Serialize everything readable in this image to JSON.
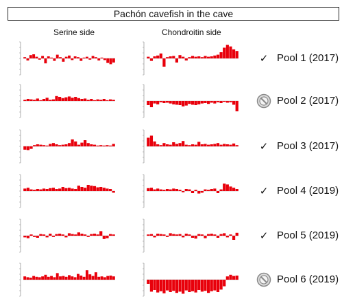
{
  "title": "Pachón cavefish  in the cave",
  "columns": {
    "serine": "Serine side",
    "chondroitin": "Chondroitin side"
  },
  "colors": {
    "bar": "#e8000b",
    "axis": "#9a9a9a",
    "baseline": "#c8c8c8"
  },
  "pools": [
    {
      "label": "Pool 1 (2017)",
      "status": "check",
      "status_glyph": "✓"
    },
    {
      "label": "Pool 2 (2017)",
      "status": "prohibited",
      "status_glyph": ""
    },
    {
      "label": "Pool 3 (2017)",
      "status": "check",
      "status_glyph": "✓"
    },
    {
      "label": "Pool 4 (2019)",
      "status": "check",
      "status_glyph": "✓"
    },
    {
      "label": "Pool 5 (2019)",
      "status": "check",
      "status_glyph": "✓"
    },
    {
      "label": "Pool 6 (2019)",
      "status": "prohibited",
      "status_glyph": ""
    }
  ],
  "chart_data": {
    "type": "bar",
    "note": "Per-pool mini bar charts of side preference; values are relative bar heights (positive up, negative down).",
    "ylim": [
      -4,
      4
    ],
    "panels": [
      {
        "pool": "Pool 1 (2017)",
        "side": "Serine side",
        "values": [
          0.3,
          -0.5,
          0.8,
          1.0,
          0.4,
          -0.3,
          0.6,
          -1.2,
          0.5,
          0.2,
          -0.6,
          0.9,
          0.3,
          -0.8,
          0.4,
          0.7,
          -0.4,
          0.5,
          0.3,
          -0.6,
          0.2,
          0.4,
          -0.3,
          0.6,
          0.3,
          -0.5,
          0.2,
          -0.4,
          -1.1,
          -1.4,
          -1.0
        ]
      },
      {
        "pool": "Pool 1 (2017)",
        "side": "Chondroitin side",
        "values": [
          0.4,
          -0.6,
          0.5,
          0.7,
          1.2,
          -2.0,
          0.3,
          0.5,
          0.6,
          -1.0,
          0.8,
          0.4,
          -0.5,
          0.3,
          0.6,
          0.4,
          0.5,
          0.3,
          0.6,
          0.4,
          0.5,
          0.7,
          0.9,
          1.5,
          2.6,
          3.3,
          2.9,
          2.2,
          1.8
        ]
      },
      {
        "pool": "Pool 2 (2017)",
        "side": "Serine side",
        "values": [
          0.3,
          0.5,
          0.4,
          0.3,
          0.6,
          0.2,
          0.5,
          0.8,
          0.3,
          0.4,
          1.2,
          1.0,
          0.7,
          0.9,
          1.1,
          0.8,
          1.0,
          0.7,
          0.5,
          0.6,
          0.3,
          0.5,
          0.2,
          0.4,
          0.3,
          0.5,
          0.2,
          0.4,
          0.3
        ]
      },
      {
        "pool": "Pool 2 (2017)",
        "side": "Chondroitin side",
        "values": [
          -1.0,
          -1.5,
          -0.6,
          -0.8,
          -0.3,
          -0.5,
          -0.4,
          -0.6,
          -0.8,
          -0.9,
          -1.0,
          -1.3,
          -1.1,
          -0.7,
          -0.9,
          -1.0,
          -0.8,
          -0.6,
          -0.5,
          -0.7,
          -0.4,
          -0.6,
          -0.3,
          -0.5,
          -0.2,
          -0.4,
          -0.3,
          -0.9,
          -2.5
        ]
      },
      {
        "pool": "Pool 3 (2017)",
        "side": "Serine side",
        "values": [
          -0.8,
          -0.9,
          -0.6,
          0.3,
          0.5,
          0.4,
          0.3,
          0.2,
          0.6,
          0.8,
          0.5,
          0.3,
          0.4,
          0.5,
          0.8,
          1.7,
          1.2,
          0.4,
          0.9,
          1.5,
          0.8,
          0.5,
          0.4,
          0.2,
          0.3,
          0.2,
          0.3,
          0.2,
          0.6
        ]
      },
      {
        "pool": "Pool 3 (2017)",
        "side": "Chondroitin side",
        "values": [
          2.1,
          2.6,
          1.2,
          0.5,
          0.3,
          0.8,
          0.5,
          0.4,
          1.0,
          0.6,
          0.8,
          1.3,
          0.4,
          0.3,
          0.5,
          0.4,
          1.1,
          0.5,
          0.6,
          0.4,
          0.5,
          0.6,
          0.8,
          0.4,
          0.6,
          0.5,
          0.4,
          0.7,
          0.3
        ]
      },
      {
        "pool": "Pool 4 (2019)",
        "side": "Serine side",
        "values": [
          0.6,
          0.8,
          0.4,
          0.3,
          0.5,
          0.4,
          0.6,
          0.5,
          0.7,
          0.8,
          0.5,
          0.6,
          1.0,
          0.7,
          0.8,
          0.6,
          0.5,
          1.3,
          1.0,
          0.8,
          1.5,
          1.3,
          1.2,
          0.9,
          1.0,
          0.8,
          0.6,
          0.5,
          -0.4
        ]
      },
      {
        "pool": "Pool 4 (2019)",
        "side": "Chondroitin side",
        "values": [
          0.7,
          0.8,
          0.4,
          0.6,
          0.4,
          0.3,
          0.5,
          0.4,
          0.6,
          0.5,
          0.3,
          -0.3,
          0.5,
          0.4,
          -0.5,
          0.3,
          -0.6,
          -0.4,
          0.4,
          0.3,
          0.5,
          0.6,
          -0.5,
          0.4,
          1.8,
          1.6,
          1.1,
          0.8,
          0.5
        ]
      },
      {
        "pool": "Pool 5 (2019)",
        "side": "Serine side",
        "values": [
          -0.4,
          -0.6,
          0.3,
          -0.3,
          -0.5,
          0.4,
          0.3,
          -0.4,
          0.5,
          -0.3,
          0.4,
          0.5,
          0.3,
          -0.4,
          0.6,
          0.4,
          0.3,
          0.8,
          0.5,
          0.3,
          -0.3,
          0.4,
          0.5,
          0.3,
          1.1,
          -0.8,
          -0.6,
          0.4,
          0.3
        ]
      },
      {
        "pool": "Pool 5 (2019)",
        "side": "Chondroitin side",
        "values": [
          0.3,
          0.4,
          -0.4,
          0.5,
          0.4,
          0.3,
          -0.3,
          0.6,
          0.4,
          0.3,
          0.4,
          -0.4,
          0.5,
          0.3,
          -0.5,
          -0.7,
          0.4,
          0.3,
          -0.6,
          0.4,
          0.5,
          0.3,
          -0.5,
          0.4,
          0.6,
          -0.4,
          0.3,
          -1.0,
          0.7
        ]
      },
      {
        "pool": "Pool 6 (2019)",
        "side": "Serine side",
        "values": [
          0.8,
          0.6,
          0.5,
          0.9,
          0.7,
          0.6,
          0.8,
          1.2,
          0.7,
          0.9,
          0.6,
          1.6,
          0.8,
          0.9,
          0.7,
          1.1,
          0.8,
          0.6,
          1.4,
          1.0,
          0.7,
          2.3,
          1.3,
          0.9,
          1.8,
          0.7,
          0.8,
          0.6,
          0.9,
          1.0,
          0.8
        ]
      },
      {
        "pool": "Pool 6 (2019)",
        "side": "Chondroitin side",
        "values": [
          -1.0,
          -2.9,
          -2.5,
          -3.1,
          -2.8,
          -3.3,
          -2.6,
          -3.0,
          -2.7,
          -3.2,
          -2.9,
          -3.4,
          -2.6,
          -3.0,
          -2.8,
          -3.1,
          -2.5,
          -2.9,
          -2.7,
          -3.2,
          -2.8,
          -2.6,
          -3.0,
          -2.4,
          -1.6,
          0.8,
          1.2,
          0.9,
          1.0
        ]
      }
    ]
  }
}
